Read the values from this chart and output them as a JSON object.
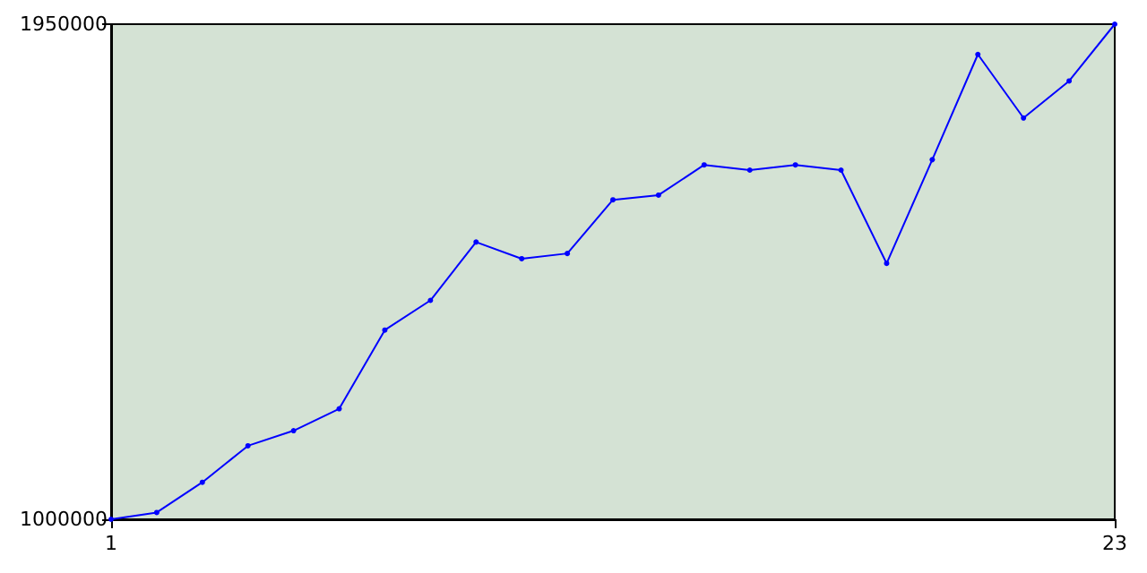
{
  "chart_data": {
    "type": "line",
    "x": [
      1,
      2,
      3,
      4,
      5,
      6,
      7,
      8,
      9,
      10,
      11,
      12,
      13,
      14,
      15,
      16,
      17,
      18,
      19,
      20,
      21,
      22,
      23
    ],
    "series": [
      {
        "color": "#0000ff",
        "values": [
          1000000,
          1013000,
          1071000,
          1141000,
          1170000,
          1212000,
          1363000,
          1420000,
          1532000,
          1500000,
          1510000,
          1613000,
          1622000,
          1680000,
          1670000,
          1680000,
          1670000,
          1491000,
          1690000,
          1892000,
          1770000,
          1841000,
          1950000
        ]
      }
    ],
    "xlim": [
      1,
      23
    ],
    "xticks": [
      1,
      23
    ],
    "ylim": [
      1000000,
      1950000
    ],
    "yticks": [
      1000000,
      1950000
    ],
    "grid": false,
    "marker": "circle",
    "line_style": "solid"
  }
}
